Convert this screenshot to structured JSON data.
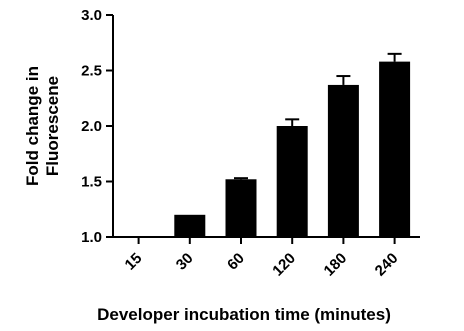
{
  "chart_data": {
    "type": "bar",
    "categories": [
      "15",
      "30",
      "60",
      "120",
      "180",
      "240"
    ],
    "values": [
      1.0,
      1.2,
      1.52,
      2.0,
      2.37,
      2.58
    ],
    "errors": [
      0,
      0,
      0.01,
      0.06,
      0.08,
      0.07
    ],
    "xlabel": "Developer incubation time (minutes)",
    "ylabel_lines": [
      "Fold change in",
      "Fluorescene"
    ],
    "ylim": [
      1.0,
      3.0
    ],
    "yticks": [
      "1.0",
      "1.5",
      "2.0",
      "2.5",
      "3.0"
    ],
    "grid": false,
    "bar_color": "#000000",
    "error_bar_style": "upper-cap"
  }
}
